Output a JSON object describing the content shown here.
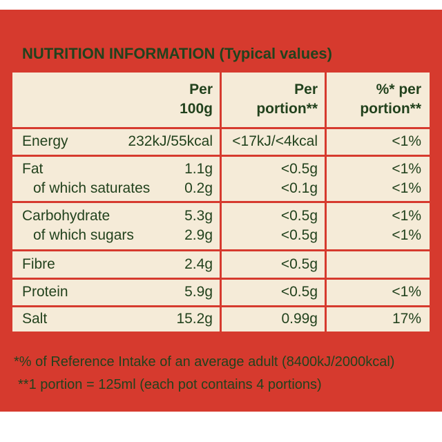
{
  "title": "NUTRITION INFORMATION (Typical values)",
  "table": {
    "header": [
      [
        "Per",
        "100g"
      ],
      [
        "Per",
        "portion**"
      ],
      [
        "%* per",
        "portion**"
      ]
    ],
    "sections": [
      [
        {
          "label": "Energy",
          "per_100g": "232kJ/55kcal",
          "per_portion": "<17kJ/<4kcal",
          "ri": "<1%"
        }
      ],
      [
        {
          "label": "Fat",
          "per_100g": "1.1g",
          "per_portion": "<0.5g",
          "ri": "<1%"
        },
        {
          "label": "of which saturates",
          "per_100g": "0.2g",
          "per_portion": "<0.1g",
          "ri": "<1%"
        }
      ],
      [
        {
          "label": "Carbohydrate",
          "per_100g": "5.3g",
          "per_portion": "<0.5g",
          "ri": "<1%"
        },
        {
          "label": "of which sugars",
          "per_100g": "2.9g",
          "per_portion": "<0.5g",
          "ri": "<1%"
        }
      ],
      [
        {
          "label": "Fibre",
          "per_100g": "2.4g",
          "per_portion": "<0.5g"
        }
      ],
      [
        {
          "label": "Protein",
          "per_100g": "5.9g",
          "per_portion": "<0.5g",
          "ri": "<1%"
        }
      ],
      [
        {
          "label": "Salt",
          "per_100g": "15.2g",
          "per_portion": "0.99g",
          "ri": "17%"
        }
      ]
    ]
  },
  "footnotes": [
    "*% of Reference Intake of an average adult (8400kJ/2000kcal)",
    "**1 portion = 125ml (each pot contains 4 portions)"
  ]
}
